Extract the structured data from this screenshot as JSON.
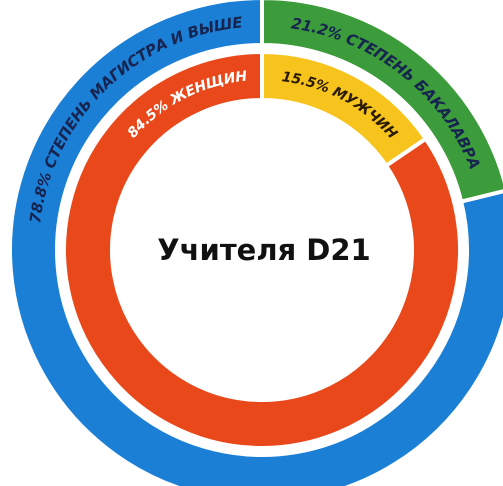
{
  "chart_data": {
    "type": "donut",
    "center_label": "Учителя D21",
    "direction": "counterclockwise",
    "rings": [
      {
        "values": [
          78.8,
          21.2
        ],
        "value_labels": [
          "78.8% СТЕПЕНЬ МАГИСТРА И ВЫШЕ",
          "21.2% СТЕПЕНЬ БАКАЛАВРА"
        ],
        "colors": [
          "#1b7fd6",
          "#3c9b3a"
        ]
      },
      {
        "values": [
          84.5,
          15.5
        ],
        "value_labels": [
          "84.5% ЖЕНЩИН",
          "15.5% МУЖЧИН"
        ],
        "colors": [
          "#e9481b",
          "#f6c41c"
        ]
      }
    ]
  }
}
